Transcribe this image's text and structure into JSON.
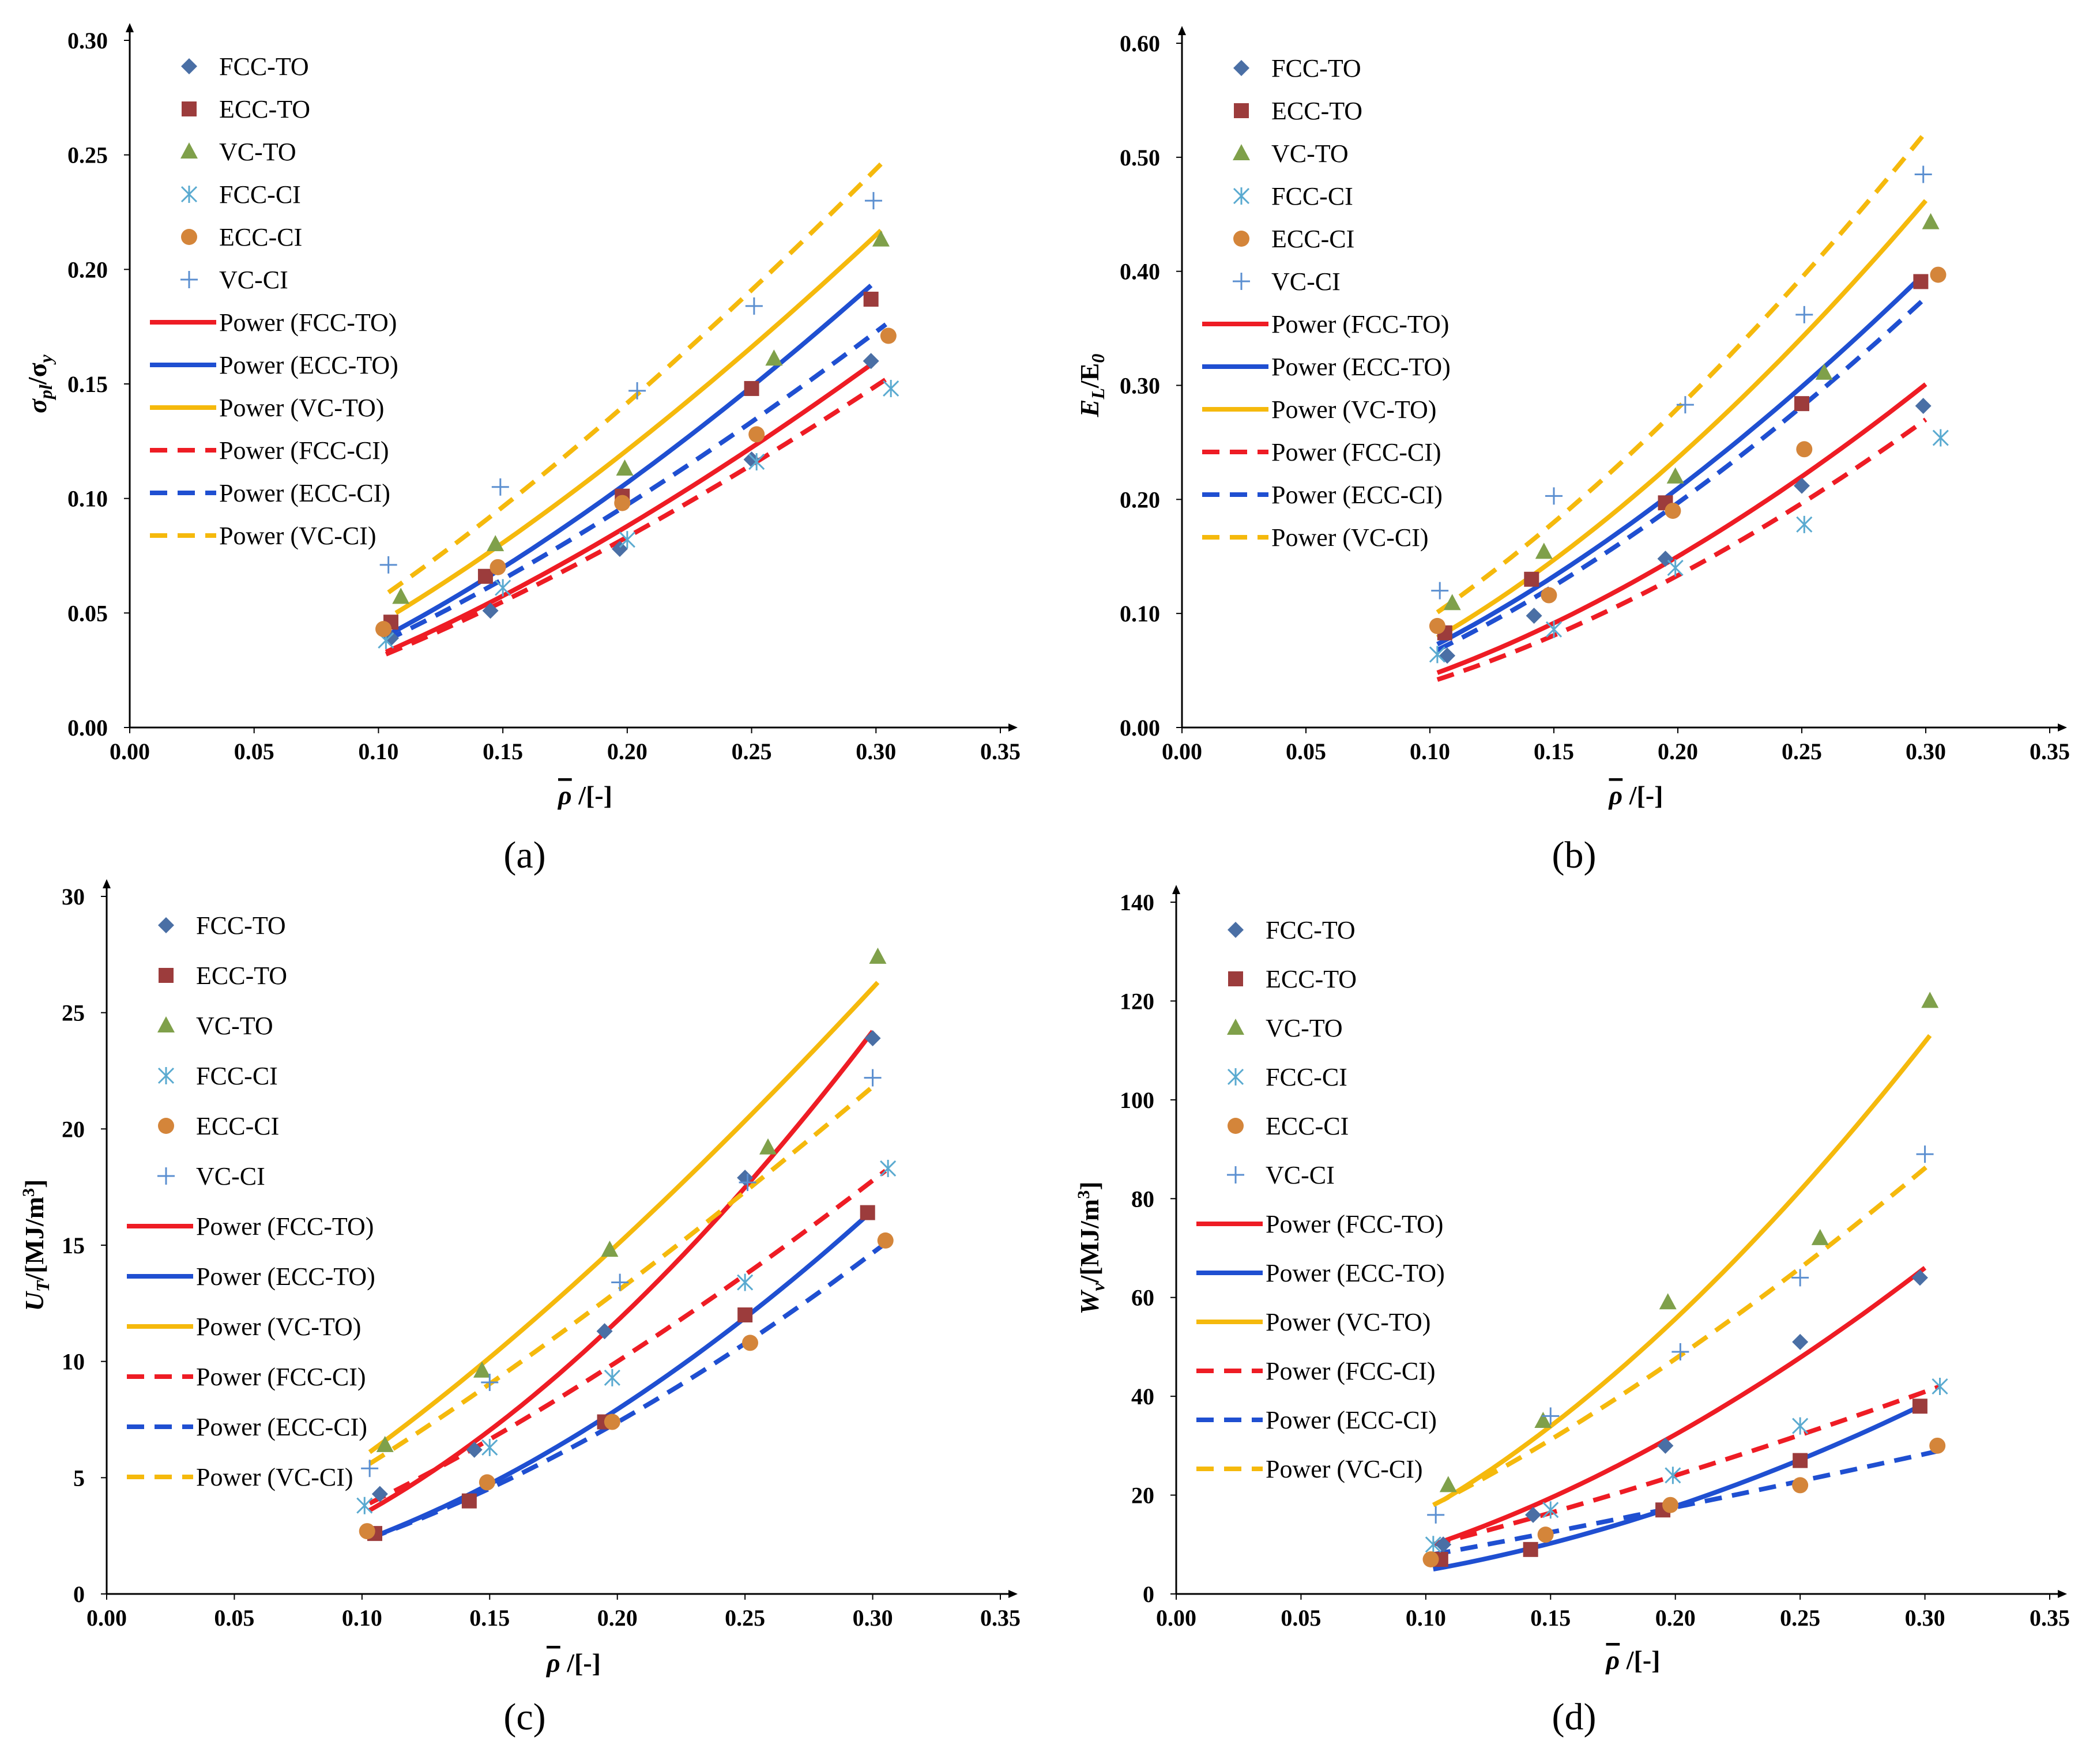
{
  "colors": {
    "fcc_to_marker": "#4a6fa5",
    "ecc_to_marker": "#9c3c3c",
    "vc_to_marker": "#7fa04a",
    "fcc_ci_marker": "#5aaad0",
    "ecc_ci_marker": "#d4853a",
    "vc_ci_marker": "#5b8fd0",
    "power_fcc": "#ee1c24",
    "power_ecc": "#1f4fd1",
    "power_vc": "#f5b90c"
  },
  "panel_labels": [
    "(a)",
    "(b)",
    "(c)",
    "(d)"
  ],
  "chart_data": [
    {
      "type": "scatter",
      "panel_label": "(a)",
      "ylabel": "σpl/σy",
      "ylabel_main": "σ",
      "ylabel_sub": "pl",
      "ylabel_mid": "/σ",
      "ylabel_sub2": "y",
      "xlabel": "ρ̄ /[-]",
      "xlabel_symbol": "ρ",
      "xlabel_unit": "/[-]",
      "xlim": [
        0,
        0.35
      ],
      "ylim": [
        0,
        0.3
      ],
      "xticks": [
        "0.00",
        "0.05",
        "0.10",
        "0.15",
        "0.20",
        "0.25",
        "0.30",
        "0.35"
      ],
      "yticks": [
        "0.00",
        "0.05",
        "0.10",
        "0.15",
        "0.20",
        "0.25",
        "0.30"
      ],
      "series": [
        {
          "name": "FCC-TO",
          "marker": "diamond",
          "color": "fcc_to_marker",
          "x": [
            0.105,
            0.145,
            0.197,
            0.25,
            0.298
          ],
          "y": [
            0.039,
            0.051,
            0.078,
            0.117,
            0.16
          ]
        },
        {
          "name": "ECC-TO",
          "marker": "square",
          "color": "ecc_to_marker",
          "x": [
            0.105,
            0.143,
            0.198,
            0.25,
            0.298
          ],
          "y": [
            0.046,
            0.066,
            0.101,
            0.148,
            0.187
          ]
        },
        {
          "name": "VC-TO",
          "marker": "triangle",
          "color": "vc_to_marker",
          "x": [
            0.109,
            0.147,
            0.199,
            0.259,
            0.302
          ],
          "y": [
            0.057,
            0.08,
            0.113,
            0.161,
            0.213
          ]
        },
        {
          "name": "FCC-CI",
          "marker": "asterisk",
          "color": "fcc_ci_marker",
          "x": [
            0.103,
            0.15,
            0.2,
            0.252,
            0.306
          ],
          "y": [
            0.038,
            0.061,
            0.082,
            0.116,
            0.148
          ]
        },
        {
          "name": "ECC-CI",
          "marker": "circle",
          "color": "ecc_ci_marker",
          "x": [
            0.102,
            0.148,
            0.198,
            0.252,
            0.305
          ],
          "y": [
            0.043,
            0.07,
            0.098,
            0.128,
            0.171
          ]
        },
        {
          "name": "VC-CI",
          "marker": "plus",
          "color": "vc_ci_marker",
          "x": [
            0.104,
            0.149,
            0.204,
            0.251,
            0.299
          ],
          "y": [
            0.071,
            0.105,
            0.147,
            0.184,
            0.23
          ]
        }
      ],
      "fits": [
        {
          "name": "Power (FCC-TO)",
          "style": "solid",
          "color": "power_fcc",
          "x_range": [
            0.103,
            0.3
          ],
          "y_range": [
            0.033,
            0.16
          ]
        },
        {
          "name": "Power (ECC-TO)",
          "style": "solid",
          "color": "power_ecc",
          "x_range": [
            0.103,
            0.298
          ],
          "y_range": [
            0.04,
            0.193
          ]
        },
        {
          "name": "Power (VC-TO)",
          "style": "solid",
          "color": "power_vc",
          "x_range": [
            0.107,
            0.302
          ],
          "y_range": [
            0.05,
            0.217
          ]
        },
        {
          "name": "Power (FCC-CI)",
          "style": "dashed",
          "color": "power_fcc",
          "x_range": [
            0.103,
            0.304
          ],
          "y_range": [
            0.032,
            0.152
          ]
        },
        {
          "name": "Power (ECC-CI)",
          "style": "dashed",
          "color": "power_ecc",
          "x_range": [
            0.103,
            0.304
          ],
          "y_range": [
            0.038,
            0.176
          ]
        },
        {
          "name": "Power (VC-CI)",
          "style": "dashed",
          "color": "power_vc",
          "x_range": [
            0.104,
            0.302
          ],
          "y_range": [
            0.059,
            0.246
          ]
        }
      ]
    },
    {
      "type": "scatter",
      "panel_label": "(b)",
      "ylabel": "EL/E0",
      "ylabel_main": "E",
      "ylabel_sub": "L",
      "ylabel_mid": "/E",
      "ylabel_sub2": "0",
      "xlabel": "ρ̄ /[-]",
      "xlabel_symbol": "ρ",
      "xlabel_unit": "/[-]",
      "xlim": [
        0,
        0.35
      ],
      "ylim": [
        0,
        0.6
      ],
      "xticks": [
        "0.00",
        "0.05",
        "0.10",
        "0.15",
        "0.20",
        "0.25",
        "0.30",
        "0.35"
      ],
      "yticks": [
        "0.00",
        "0.10",
        "0.20",
        "0.30",
        "0.40",
        "0.50",
        "0.60"
      ],
      "series": [
        {
          "name": "FCC-TO",
          "marker": "diamond",
          "color": "fcc_to_marker",
          "x": [
            0.107,
            0.142,
            0.195,
            0.25,
            0.299
          ],
          "y": [
            0.063,
            0.098,
            0.148,
            0.212,
            0.282
          ]
        },
        {
          "name": "ECC-TO",
          "marker": "square",
          "color": "ecc_to_marker",
          "x": [
            0.106,
            0.141,
            0.195,
            0.25,
            0.298
          ],
          "y": [
            0.083,
            0.13,
            0.197,
            0.284,
            0.391
          ]
        },
        {
          "name": "VC-TO",
          "marker": "triangle",
          "color": "vc_to_marker",
          "x": [
            0.109,
            0.146,
            0.199,
            0.259,
            0.302
          ],
          "y": [
            0.109,
            0.154,
            0.22,
            0.311,
            0.443
          ]
        },
        {
          "name": "FCC-CI",
          "marker": "asterisk",
          "color": "fcc_ci_marker",
          "x": [
            0.103,
            0.15,
            0.199,
            0.251,
            0.306
          ],
          "y": [
            0.064,
            0.086,
            0.14,
            0.178,
            0.254
          ]
        },
        {
          "name": "ECC-CI",
          "marker": "circle",
          "color": "ecc_ci_marker",
          "x": [
            0.103,
            0.148,
            0.198,
            0.251,
            0.305
          ],
          "y": [
            0.089,
            0.116,
            0.19,
            0.244,
            0.397
          ]
        },
        {
          "name": "VC-CI",
          "marker": "plus",
          "color": "vc_ci_marker",
          "x": [
            0.104,
            0.15,
            0.203,
            0.251,
            0.299
          ],
          "y": [
            0.12,
            0.203,
            0.283,
            0.362,
            0.485
          ]
        }
      ],
      "fits": [
        {
          "name": "Power (FCC-TO)",
          "style": "solid",
          "color": "power_fcc",
          "x_range": [
            0.103,
            0.3
          ],
          "y_range": [
            0.048,
            0.301
          ]
        },
        {
          "name": "Power (ECC-TO)",
          "style": "solid",
          "color": "power_ecc",
          "x_range": [
            0.103,
            0.298
          ],
          "y_range": [
            0.073,
            0.395
          ]
        },
        {
          "name": "Power (VC-TO)",
          "style": "solid",
          "color": "power_vc",
          "x_range": [
            0.103,
            0.3
          ],
          "y_range": [
            0.079,
            0.462
          ]
        },
        {
          "name": "Power (FCC-CI)",
          "style": "dashed",
          "color": "power_fcc",
          "x_range": [
            0.103,
            0.3
          ],
          "y_range": [
            0.042,
            0.27
          ]
        },
        {
          "name": "Power (ECC-CI)",
          "style": "dashed",
          "color": "power_ecc",
          "x_range": [
            0.103,
            0.3
          ],
          "y_range": [
            0.068,
            0.377
          ]
        },
        {
          "name": "Power (VC-CI)",
          "style": "dashed",
          "color": "power_vc",
          "x_range": [
            0.103,
            0.3
          ],
          "y_range": [
            0.101,
            0.522
          ]
        }
      ]
    },
    {
      "type": "scatter",
      "panel_label": "(c)",
      "ylabel": "UT/[MJ/m3]",
      "ylabel_main": "U",
      "ylabel_sub": "T",
      "ylabel_mid": "/[MJ/m",
      "ylabel_sup": "3",
      "ylabel_end": "]",
      "xlabel": "ρ̄ /[-]",
      "xlabel_symbol": "ρ",
      "xlabel_unit": "/[-]",
      "xlim": [
        0,
        0.35
      ],
      "ylim": [
        0,
        30
      ],
      "xticks": [
        "0.00",
        "0.05",
        "0.10",
        "0.15",
        "0.20",
        "0.25",
        "0.30",
        "0.35"
      ],
      "yticks": [
        "0",
        "5",
        "10",
        "15",
        "20",
        "25",
        "30"
      ],
      "series": [
        {
          "name": "FCC-TO",
          "marker": "diamond",
          "color": "fcc_to_marker",
          "x": [
            0.107,
            0.144,
            0.195,
            0.25,
            0.3
          ],
          "y": [
            4.3,
            6.2,
            11.3,
            17.9,
            23.9
          ]
        },
        {
          "name": "ECC-TO",
          "marker": "square",
          "color": "ecc_to_marker",
          "x": [
            0.105,
            0.142,
            0.195,
            0.25,
            0.298
          ],
          "y": [
            2.6,
            4.0,
            7.4,
            12.0,
            16.4
          ]
        },
        {
          "name": "VC-TO",
          "marker": "triangle",
          "color": "vc_to_marker",
          "x": [
            0.109,
            0.147,
            0.197,
            0.259,
            0.302
          ],
          "y": [
            6.4,
            9.6,
            14.8,
            19.2,
            27.4
          ]
        },
        {
          "name": "FCC-CI",
          "marker": "asterisk",
          "color": "fcc_ci_marker",
          "x": [
            0.101,
            0.15,
            0.198,
            0.25,
            0.306
          ],
          "y": [
            3.8,
            6.3,
            9.3,
            13.4,
            18.3
          ]
        },
        {
          "name": "ECC-CI",
          "marker": "circle",
          "color": "ecc_ci_marker",
          "x": [
            0.102,
            0.149,
            0.198,
            0.252,
            0.305
          ],
          "y": [
            2.7,
            4.8,
            7.4,
            10.8,
            15.2
          ]
        },
        {
          "name": "VC-CI",
          "marker": "plus",
          "color": "vc_ci_marker",
          "x": [
            0.103,
            0.15,
            0.201,
            0.251,
            0.3
          ],
          "y": [
            5.4,
            9.1,
            13.4,
            17.7,
            22.2
          ]
        }
      ],
      "fits": [
        {
          "name": "Power (FCC-TO)",
          "style": "solid",
          "color": "power_fcc",
          "x_range": [
            0.103,
            0.3
          ],
          "y_range": [
            3.6,
            24.2
          ]
        },
        {
          "name": "Power (ECC-TO)",
          "style": "solid",
          "color": "power_ecc",
          "x_range": [
            0.103,
            0.298
          ],
          "y_range": [
            2.4,
            16.3
          ]
        },
        {
          "name": "Power (VC-TO)",
          "style": "solid",
          "color": "power_vc",
          "x_range": [
            0.103,
            0.302
          ],
          "y_range": [
            6.1,
            26.3
          ]
        },
        {
          "name": "Power (FCC-CI)",
          "style": "dashed",
          "color": "power_fcc",
          "x_range": [
            0.103,
            0.305
          ],
          "y_range": [
            3.9,
            18.2
          ]
        },
        {
          "name": "Power (ECC-CI)",
          "style": "dashed",
          "color": "power_ecc",
          "x_range": [
            0.103,
            0.304
          ],
          "y_range": [
            2.4,
            15.0
          ]
        },
        {
          "name": "Power (VC-CI)",
          "style": "dashed",
          "color": "power_vc",
          "x_range": [
            0.103,
            0.302
          ],
          "y_range": [
            5.6,
            22.0
          ]
        }
      ]
    },
    {
      "type": "scatter",
      "panel_label": "(d)",
      "ylabel": "Wv/[MJ/m3]",
      "ylabel_main": "W",
      "ylabel_sub": "v",
      "ylabel_mid": "/[MJ/m",
      "ylabel_sup": "3",
      "ylabel_end": "]",
      "xlabel": "ρ̄ /[-]",
      "xlabel_symbol": "ρ",
      "xlabel_unit": "/[-]",
      "xlim": [
        0,
        0.35
      ],
      "ylim": [
        0,
        140
      ],
      "xticks": [
        "0.00",
        "0.05",
        "0.10",
        "0.15",
        "0.20",
        "0.25",
        "0.30",
        "0.35"
      ],
      "yticks": [
        "0",
        "20",
        "40",
        "60",
        "80",
        "100",
        "120",
        "140"
      ],
      "series": [
        {
          "name": "FCC-TO",
          "marker": "diamond",
          "color": "fcc_to_marker",
          "x": [
            0.107,
            0.143,
            0.196,
            0.25,
            0.298
          ],
          "y": [
            10,
            16,
            30,
            51,
            64
          ]
        },
        {
          "name": "ECC-TO",
          "marker": "square",
          "color": "ecc_to_marker",
          "x": [
            0.106,
            0.142,
            0.195,
            0.25,
            0.298
          ],
          "y": [
            7,
            9,
            17,
            27,
            38
          ]
        },
        {
          "name": "VC-TO",
          "marker": "triangle",
          "color": "vc_to_marker",
          "x": [
            0.109,
            0.147,
            0.197,
            0.258,
            0.302
          ],
          "y": [
            22,
            35,
            59,
            72,
            120
          ]
        },
        {
          "name": "FCC-CI",
          "marker": "asterisk",
          "color": "fcc_ci_marker",
          "x": [
            0.103,
            0.15,
            0.199,
            0.25,
            0.306
          ],
          "y": [
            10,
            17,
            24,
            34,
            42
          ]
        },
        {
          "name": "ECC-CI",
          "marker": "circle",
          "color": "ecc_ci_marker",
          "x": [
            0.102,
            0.148,
            0.198,
            0.25,
            0.305
          ],
          "y": [
            7,
            12,
            18,
            22,
            30
          ]
        },
        {
          "name": "VC-CI",
          "marker": "plus",
          "color": "vc_ci_marker",
          "x": [
            0.104,
            0.15,
            0.202,
            0.25,
            0.3
          ],
          "y": [
            16,
            36,
            49,
            64,
            89
          ]
        }
      ],
      "fits": [
        {
          "name": "Power (FCC-TO)",
          "style": "solid",
          "color": "power_fcc",
          "x_range": [
            0.103,
            0.3
          ],
          "y_range": [
            10,
            66
          ]
        },
        {
          "name": "Power (ECC-TO)",
          "style": "solid",
          "color": "power_ecc",
          "x_range": [
            0.103,
            0.298
          ],
          "y_range": [
            5,
            38
          ]
        },
        {
          "name": "Power (VC-TO)",
          "style": "solid",
          "color": "power_vc",
          "x_range": [
            0.107,
            0.302
          ],
          "y_range": [
            19,
            113
          ]
        },
        {
          "name": "Power (FCC-CI)",
          "style": "dashed",
          "color": "power_fcc",
          "x_range": [
            0.103,
            0.306
          ],
          "y_range": [
            10,
            42
          ]
        },
        {
          "name": "Power (ECC-CI)",
          "style": "dashed",
          "color": "power_ecc",
          "x_range": [
            0.103,
            0.306
          ],
          "y_range": [
            8,
            29
          ]
        },
        {
          "name": "Power (VC-CI)",
          "style": "dashed",
          "color": "power_vc",
          "x_range": [
            0.103,
            0.302
          ],
          "y_range": [
            18,
            87
          ]
        }
      ]
    }
  ]
}
